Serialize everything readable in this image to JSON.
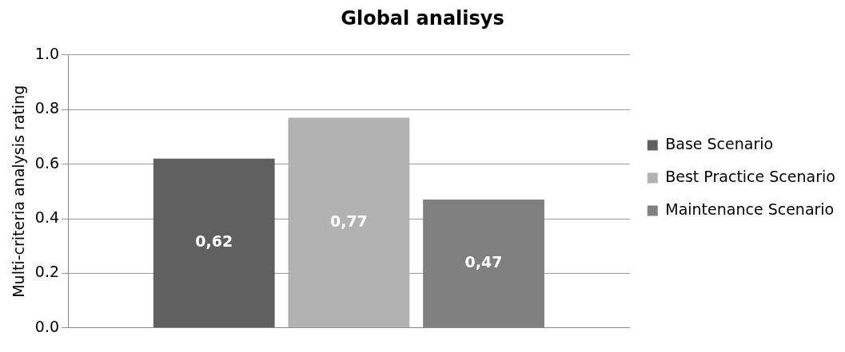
{
  "chart_data": {
    "type": "bar",
    "title": "Global analisys",
    "ylabel": "Multi-criteria analysis rating",
    "categories": [
      null
    ],
    "series": [
      {
        "name": "Base Scenario",
        "color": "#606060",
        "values": [
          0.62
        ],
        "value_labels": [
          "0,62"
        ]
      },
      {
        "name": "Best Practice Scenario",
        "color": "#b2b2b2",
        "values": [
          0.77
        ],
        "value_labels": [
          "0,77"
        ]
      },
      {
        "name": "Maintenance Scenario",
        "color": "#808080",
        "values": [
          0.47
        ],
        "value_labels": [
          "0,47"
        ]
      }
    ],
    "ylim": [
      0,
      1
    ],
    "yticks": [
      {
        "value": 0,
        "label": "0.0"
      },
      {
        "value": 0.2,
        "label": "0.2"
      },
      {
        "value": 0.4,
        "label": "0.4"
      },
      {
        "value": 0.6,
        "label": "0.6"
      },
      {
        "value": 0.8,
        "label": "0.8"
      },
      {
        "value": 1,
        "label": "1.0"
      }
    ],
    "grid": "y",
    "legend": "right"
  }
}
